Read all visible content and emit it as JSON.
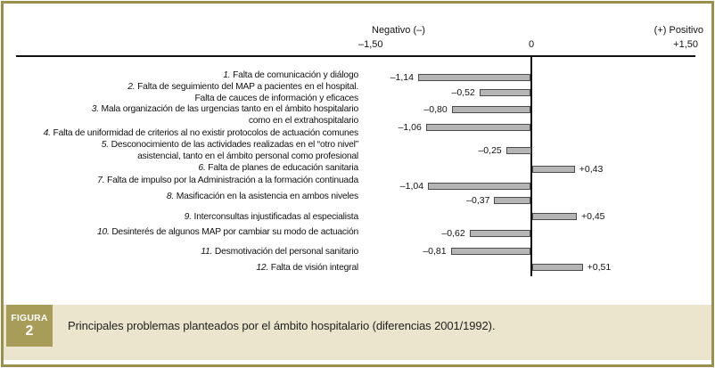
{
  "axis": {
    "negative_header": "Negativo (–)",
    "negative_tick": "–1,50",
    "zero_tick": "0",
    "positive_header": "(+) Positivo",
    "positive_tick": "+1,50"
  },
  "figure_footer": {
    "tag_line1": "FIGURA",
    "tag_line2": "2",
    "caption": "Principales problemas planteados por el ámbito hospitalario (diferencias 2001/1992)."
  },
  "colors": {
    "frame": "#9c8f4d",
    "footer_band": "#eae5cc",
    "tag_box": "#a79c58",
    "bar_fill": "#b5b5b5",
    "bar_border": "#4c4c4c",
    "axis_line": "#111111"
  },
  "chart_data": {
    "type": "bar",
    "orientation": "horizontal",
    "xlim": [
      -1.5,
      1.5
    ],
    "x_ticks": [
      "–1,50",
      "0",
      "+1,50"
    ],
    "grid": false,
    "legend": false,
    "title": "Principales problemas planteados por el ámbito hospitalario (diferencias 2001/1992).",
    "items": [
      {
        "num": "1.",
        "lines": [
          "Falta de comunicación y diálogo"
        ],
        "value": -1.14,
        "value_label": "–1,14"
      },
      {
        "num": "2.",
        "lines": [
          "Falta de seguimiento del MAP a pacientes en el hospital.",
          "Falta de cauces de información y eficaces"
        ],
        "value": -0.52,
        "value_label": "–0,52"
      },
      {
        "num": "3.",
        "lines": [
          "Mala organización de las urgencias tanto en el ámbito hospitalario",
          "como en el extrahospitalario"
        ],
        "value": -0.8,
        "value_label": "–0,80"
      },
      {
        "num": "4.",
        "lines": [
          "Falta de uniformidad de criterios al no existir protocolos de actuación comunes"
        ],
        "value": -1.06,
        "value_label": "–1,06"
      },
      {
        "num": "5.",
        "lines": [
          "Desconocimiento de las actividades realizadas en el “otro nivel”",
          "asistencial, tanto en el ámbito personal como profesional"
        ],
        "value": -0.25,
        "value_label": "–0,25"
      },
      {
        "num": "6.",
        "lines": [
          "Falta de planes de educación sanitaria"
        ],
        "value": 0.43,
        "value_label": "+0,43"
      },
      {
        "num": "7.",
        "lines": [
          "Falta de impulso por la Administración a la formación continuada"
        ],
        "value": -1.04,
        "value_label": "–1,04"
      },
      {
        "num": "8.",
        "lines": [
          "Masificación en la asistencia en ambos niveles"
        ],
        "value": -0.37,
        "value_label": "–0,37"
      },
      {
        "num": "9.",
        "lines": [
          "Interconsultas injustificadas al especialista"
        ],
        "value": 0.45,
        "value_label": "+0,45"
      },
      {
        "num": "10.",
        "lines": [
          "Desinterés de algunos MAP por cambiar su modo de actuación"
        ],
        "value": -0.62,
        "value_label": "–0,62"
      },
      {
        "num": "11.",
        "lines": [
          "Desmotivación del personal sanitario"
        ],
        "value": -0.81,
        "value_label": "–0,81"
      },
      {
        "num": "12.",
        "lines": [
          "Falta de visión integral"
        ],
        "value": 0.51,
        "value_label": "+0,51"
      }
    ]
  }
}
